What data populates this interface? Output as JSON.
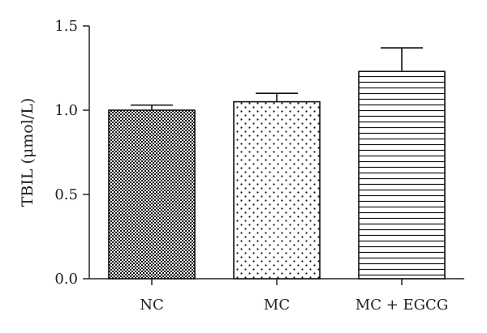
{
  "chart_data": {
    "type": "bar",
    "title": "",
    "xlabel": "",
    "ylabel": "TBIL (μmol/L)",
    "ylim": [
      0,
      1.5
    ],
    "yticks": [
      0.0,
      0.5,
      1.0,
      1.5
    ],
    "ytick_labels": [
      "0.0",
      "0.5",
      "1.0",
      "1.5"
    ],
    "categories": [
      "NC",
      "MC",
      "MC + EGCG"
    ],
    "values": [
      1.0,
      1.05,
      1.23
    ],
    "error_upper": [
      0.03,
      0.05,
      0.14
    ],
    "patterns": [
      "crosshatch",
      "dots",
      "horizontal-lines"
    ],
    "grid": false,
    "legend": "none"
  }
}
